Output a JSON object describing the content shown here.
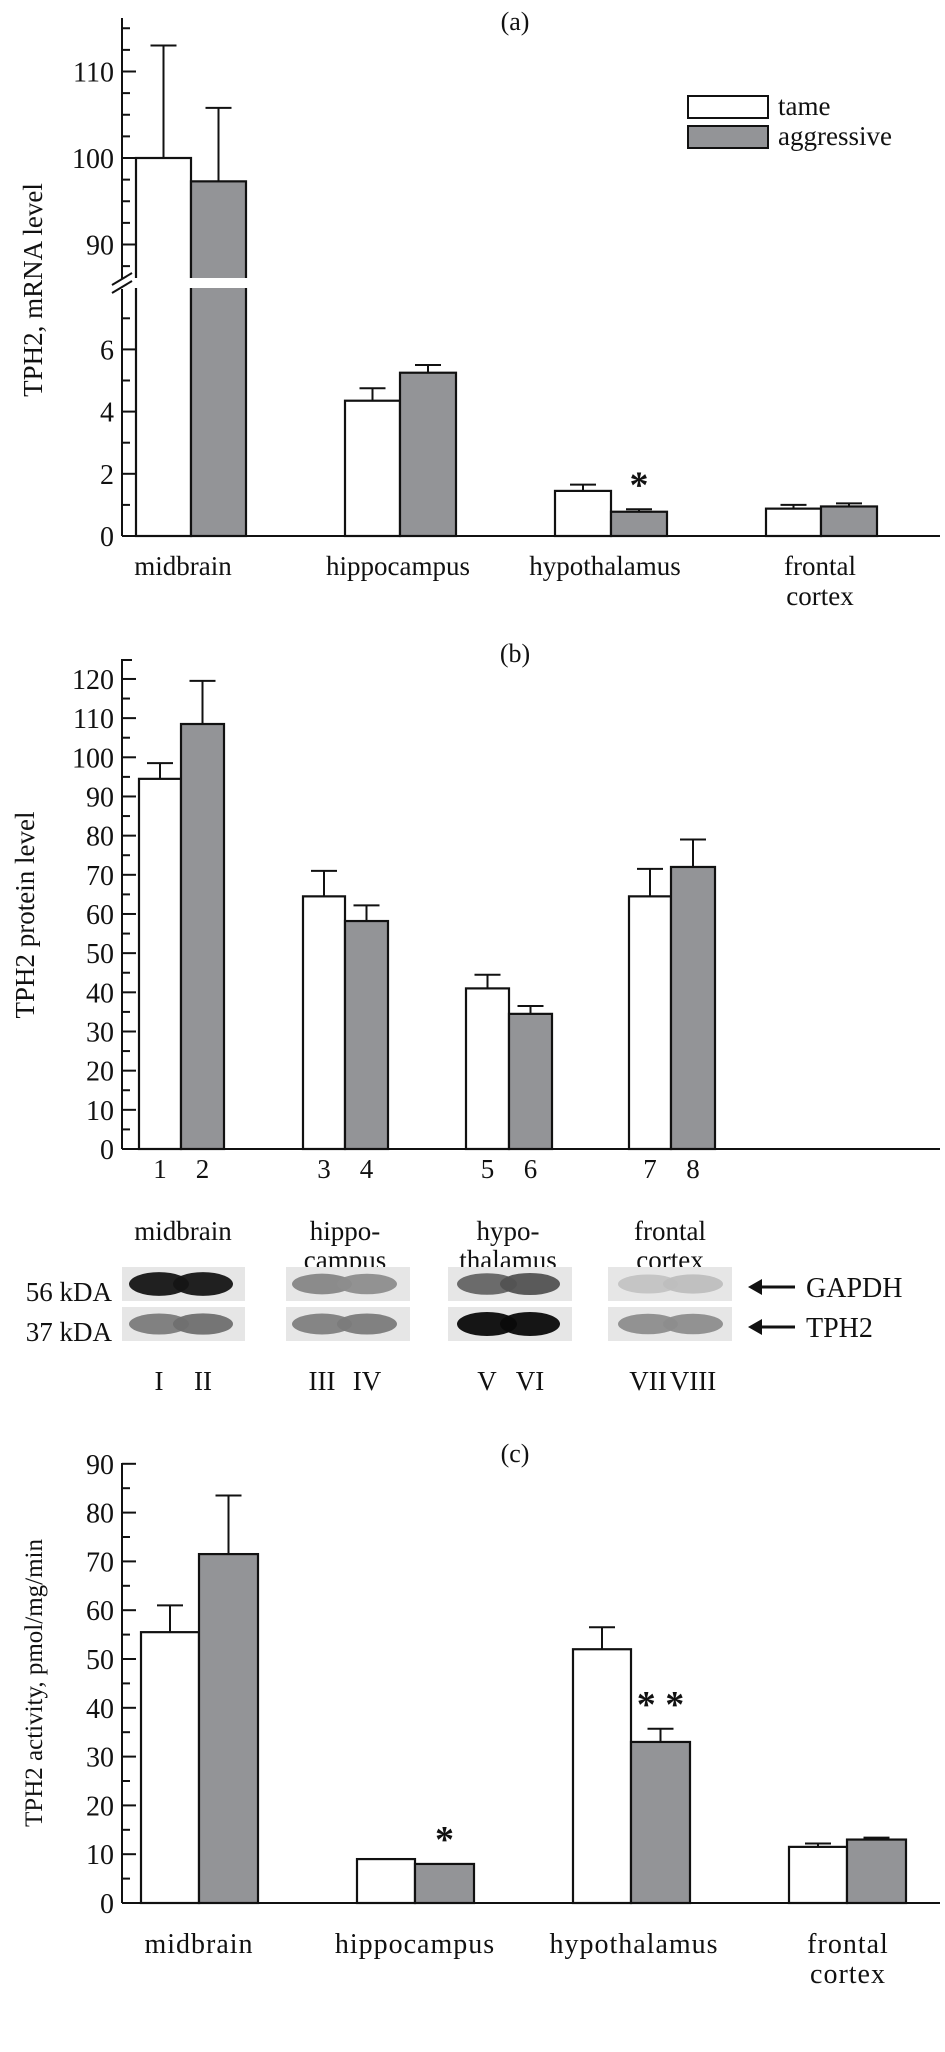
{
  "colors": {
    "tame": "#ffffff",
    "aggressive": "#939497",
    "stroke": "#111111"
  },
  "legend": {
    "items": [
      {
        "key": "tame",
        "label": "tame"
      },
      {
        "key": "aggressive",
        "label": "aggressive"
      }
    ],
    "placement": "top-right of panel (a)"
  },
  "chart_data": [
    {
      "panel": "(a)",
      "type": "bar",
      "title": "(a)",
      "ylabel": "TPH2, mRNA level",
      "xlabel": "",
      "categories": [
        "midbrain",
        "hippocampus",
        "hypothalamus",
        "frontal\ncortex"
      ],
      "category_labels": [
        [
          "midbrain"
        ],
        [
          "hippocampus"
        ],
        [
          "hypothalamus"
        ],
        [
          "frontal",
          "cortex"
        ]
      ],
      "axis_break": {
        "lower_range": [
          0,
          7.5
        ],
        "upper_range": [
          86,
          115
        ]
      },
      "yticks_lower": [
        0,
        2,
        4,
        6
      ],
      "yticks_upper": [
        90,
        100,
        110
      ],
      "series": [
        {
          "name": "tame",
          "values": [
            100,
            4.35,
            1.45,
            0.88
          ],
          "errors": [
            13,
            0.4,
            0.2,
            0.12
          ]
        },
        {
          "name": "aggressive",
          "values": [
            97.3,
            5.25,
            0.78,
            0.95
          ],
          "errors": [
            8.5,
            0.25,
            0.08,
            0.1
          ]
        }
      ],
      "annotations": [
        {
          "category": "hypothalamus",
          "series": "aggressive",
          "text": "*"
        }
      ],
      "grid": false
    },
    {
      "panel": "(b)",
      "type": "bar",
      "title": "(b)",
      "ylabel": "TPH2 protein level",
      "xlabel": "",
      "ylim": [
        0,
        125
      ],
      "yticks": [
        0,
        10,
        20,
        30,
        40,
        50,
        60,
        70,
        80,
        90,
        100,
        110,
        120
      ],
      "categories": [
        "midbrain",
        "hippocampus",
        "hypothalamus",
        "frontal cortex"
      ],
      "category_labels": [
        [
          "midbrain"
        ],
        [
          "hippo-",
          "campus"
        ],
        [
          "hypo-",
          "thalamus"
        ],
        [
          "frontal",
          "cortex"
        ]
      ],
      "lane_numbers": [
        [
          "1",
          "2"
        ],
        [
          "3",
          "4"
        ],
        [
          "5",
          "6"
        ],
        [
          "7",
          "8"
        ]
      ],
      "series": [
        {
          "name": "tame",
          "values": [
            94.5,
            64.5,
            41,
            64.5
          ],
          "errors": [
            4,
            6.5,
            3.5,
            7
          ]
        },
        {
          "name": "aggressive",
          "values": [
            108.5,
            58.2,
            34.5,
            72
          ],
          "errors": [
            11,
            4,
            2,
            7
          ]
        }
      ],
      "annotations": [],
      "grid": false,
      "western_blot": {
        "rows": [
          {
            "mw": "56 kDA",
            "protein": "GAPDH",
            "intensity": [
              0.95,
              0.95,
              0.45,
              0.42,
              0.6,
              0.68,
              0.18,
              0.2
            ]
          },
          {
            "mw": "37 kDA",
            "protein": "TPH2",
            "intensity": [
              0.5,
              0.55,
              0.48,
              0.5,
              1.0,
              1.0,
              0.42,
              0.42
            ]
          }
        ],
        "lanes": [
          "I",
          "II",
          "III",
          "IV",
          "V",
          "VI",
          "VII",
          "VIII"
        ]
      }
    },
    {
      "panel": "(c)",
      "type": "bar",
      "title": "(c)",
      "ylabel": "TPH2 activity, pmol/mg/min",
      "xlabel": "",
      "ylim": [
        0,
        90
      ],
      "yticks": [
        0,
        10,
        20,
        30,
        40,
        50,
        60,
        70,
        80,
        90
      ],
      "categories": [
        "midbrain",
        "hippocampus",
        "hypothalamus",
        "frontal cortex"
      ],
      "category_labels": [
        [
          "midbrain"
        ],
        [
          "hippocampus"
        ],
        [
          "hypothalamus"
        ],
        [
          "frontal",
          "cortex"
        ]
      ],
      "series": [
        {
          "name": "tame",
          "values": [
            55.5,
            9,
            52,
            11.5
          ],
          "errors": [
            5.5,
            0,
            4.5,
            0.7
          ]
        },
        {
          "name": "aggressive",
          "values": [
            71.5,
            8,
            33,
            13
          ],
          "errors": [
            12,
            0,
            2.7,
            0.4
          ]
        }
      ],
      "annotations": [
        {
          "category": "hippocampus",
          "series": "aggressive",
          "text": "*"
        },
        {
          "category": "hypothalamus",
          "series": "aggressive",
          "text": "* *"
        }
      ],
      "grid": false
    }
  ]
}
